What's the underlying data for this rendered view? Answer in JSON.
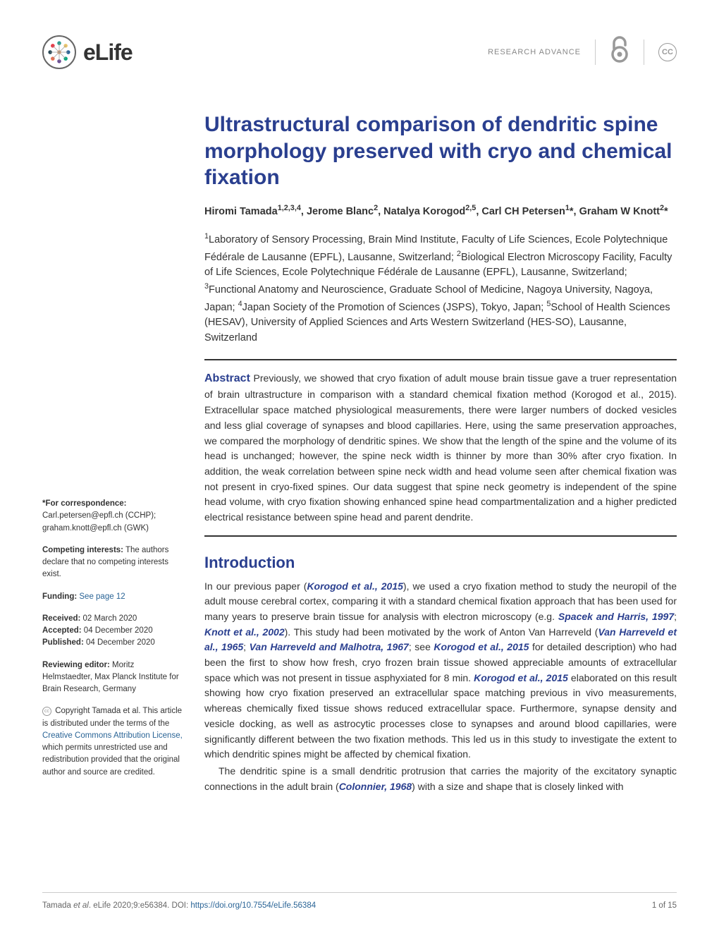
{
  "journal": {
    "name": "eLife",
    "article_type": "RESEARCH ADVANCE"
  },
  "colors": {
    "title_color": "#2a3f8f",
    "link_color": "#2a6496",
    "body_color": "#333333",
    "muted_color": "#888888",
    "background": "#ffffff"
  },
  "typography": {
    "title_fontsize": 30,
    "body_fontsize": 14,
    "sidebar_fontsize": 11.5,
    "footer_fontsize": 11.5,
    "section_title_fontsize": 22
  },
  "article": {
    "title": "Ultrastructural comparison of dendritic spine morphology preserved with cryo and chemical fixation",
    "authors_html": "Hiromi Tamada<sup>1,2,3,4</sup>, Jerome Blanc<sup>2</sup>, Natalya Korogod<sup>2,5</sup>, Carl CH Petersen<sup>1</sup>*, Graham W Knott<sup>2</sup>*",
    "affiliations_html": "<sup>1</sup>Laboratory of Sensory Processing, Brain Mind Institute, Faculty of Life Sciences, Ecole Polytechnique Fédérale de Lausanne (EPFL), Lausanne, Switzerland; <sup>2</sup>Biological Electron Microscopy Facility, Faculty of Life Sciences, Ecole Polytechnique Fédérale de Lausanne (EPFL), Lausanne, Switzerland; <sup>3</sup>Functional Anatomy and Neuroscience, Graduate School of Medicine, Nagoya University, Nagoya, Japan; <sup>4</sup>Japan Society of the Promotion of Sciences (JSPS), Tokyo, Japan; <sup>5</sup>School of Health Sciences (HESAV), University of Applied Sciences and Arts Western Switzerland (HES-SO), Lausanne, Switzerland",
    "abstract_label": "Abstract",
    "abstract_text": "Previously, we showed that cryo fixation of adult mouse brain tissue gave a truer representation of brain ultrastructure in comparison with a standard chemical fixation method (Korogod et al., 2015). Extracellular space matched physiological measurements, there were larger numbers of docked vesicles and less glial coverage of synapses and blood capillaries. Here, using the same preservation approaches, we compared the morphology of dendritic spines. We show that the length of the spine and the volume of its head is unchanged; however, the spine neck width is thinner by more than 30% after cryo fixation. In addition, the weak correlation between spine neck width and head volume seen after chemical fixation was not present in cryo-fixed spines. Our data suggest that spine neck geometry is independent of the spine head volume, with cryo fixation showing enhanced spine head compartmentalization and a higher predicted electrical resistance between spine head and parent dendrite."
  },
  "introduction": {
    "heading": "Introduction",
    "para1_pre": "In our previous paper (",
    "ref1": "Korogod et al., 2015",
    "para1_mid1": "), we used a cryo fixation method to study the neuropil of the adult mouse cerebral cortex, comparing it with a standard chemical fixation approach that has been used for many years to preserve brain tissue for analysis with electron microscopy (e.g. ",
    "ref2": "Spacek and Harris, 1997",
    "sep1": "; ",
    "ref3": "Knott et al., 2002",
    "para1_mid2": "). This study had been motivated by the work of Anton Van Harreveld (",
    "ref4": "Van Harreveld et al., 1965",
    "sep2": "; ",
    "ref5": "Van Harreveld and Malhotra, 1967",
    "para1_mid3": "; see ",
    "ref6": "Korogod et al., 2015",
    "para1_mid4": " for detailed description) who had been the first to show how fresh, cryo frozen brain tissue showed appreciable amounts of extracellular space which was not present in tissue asphyxiated for 8 min. ",
    "ref7": "Korogod et al., 2015",
    "para1_end": " elaborated on this result showing how cryo fixation preserved an extracellular space matching previous in vivo measurements, whereas chemically fixed tissue shows reduced extracellular space. Furthermore, synapse density and vesicle docking, as well as astrocytic processes close to synapses and around blood capillaries, were significantly different between the two fixation methods. This led us in this study to investigate the extent to which dendritic spines might be affected by chemical fixation.",
    "para2_pre": "The dendritic spine is a small dendritic protrusion that carries the majority of the excitatory synaptic connections in the adult brain (",
    "ref8": "Colonnier, 1968",
    "para2_end": ") with a size and shape that is closely linked with"
  },
  "sidebar": {
    "correspondence": {
      "label": "*For correspondence:",
      "email1": "Carl.petersen@epfl.ch (CCHP);",
      "email2": "graham.knott@epfl.ch (GWK)"
    },
    "competing": {
      "label": "Competing interests:",
      "text": " The authors declare that no competing interests exist."
    },
    "funding": {
      "label": "Funding:",
      "link": " See page 12"
    },
    "dates": {
      "received_label": "Received:",
      "received": " 02 March 2020",
      "accepted_label": "Accepted:",
      "accepted": " 04 December 2020",
      "published_label": "Published:",
      "published": " 04 December 2020"
    },
    "reviewing": {
      "label": "Reviewing editor: ",
      "text": "Moritz Helmstaedter, Max Planck Institute for Brain Research, Germany"
    },
    "copyright": {
      "text1": " Copyright Tamada et al. This article is distributed under the terms of the ",
      "link": "Creative Commons Attribution License,",
      "text2": " which permits unrestricted use and redistribution provided that the original author and source are credited."
    }
  },
  "footer": {
    "citation_pre": "Tamada ",
    "citation_ital": "et al",
    "citation_post": ". eLife 2020;9:e56384. ",
    "doi_label": "DOI: ",
    "doi": "https://doi.org/10.7554/eLife.56384",
    "page": "1 of 15"
  }
}
